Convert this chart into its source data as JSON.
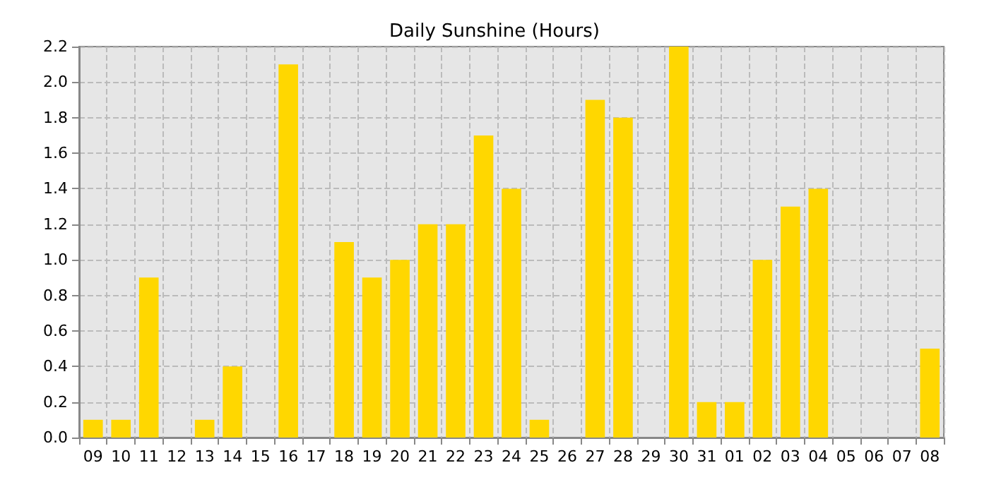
{
  "chart_data": {
    "type": "bar",
    "title": "Daily Sunshine (Hours)",
    "categories": [
      "09",
      "10",
      "11",
      "12",
      "13",
      "14",
      "15",
      "16",
      "17",
      "18",
      "19",
      "20",
      "21",
      "22",
      "23",
      "24",
      "25",
      "26",
      "27",
      "28",
      "29",
      "30",
      "31",
      "01",
      "02",
      "03",
      "04",
      "05",
      "06",
      "07",
      "08"
    ],
    "values": [
      0.1,
      0.1,
      0.9,
      0,
      0.1,
      0.4,
      0,
      2.1,
      0,
      1.1,
      0.9,
      1.0,
      1.2,
      1.2,
      1.7,
      1.4,
      0.1,
      0,
      1.9,
      1.8,
      0,
      2.2,
      0.2,
      0.2,
      1.0,
      1.3,
      1.4,
      0,
      0,
      0,
      0.5
    ],
    "color": "#ffd700",
    "ylim": [
      0,
      2.2
    ],
    "yticks": [
      {
        "value": 0,
        "label": "0.0"
      },
      {
        "value": 0.2,
        "label": "0.2"
      },
      {
        "value": 0.4,
        "label": "0.4"
      },
      {
        "value": 0.6,
        "label": "0.6"
      },
      {
        "value": 0.8,
        "label": "0.8"
      },
      {
        "value": 1,
        "label": "1.0"
      },
      {
        "value": 1.2,
        "label": "1.2"
      },
      {
        "value": 1.4,
        "label": "1.4"
      },
      {
        "value": 1.6,
        "label": "1.6"
      },
      {
        "value": 1.8,
        "label": "1.8"
      },
      {
        "value": 2,
        "label": "2.0"
      },
      {
        "value": 2.2,
        "label": "2.2"
      }
    ],
    "grid": true
  }
}
